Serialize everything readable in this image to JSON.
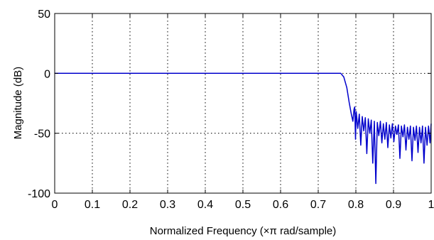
{
  "chart_data": {
    "type": "line",
    "title": "",
    "xlabel": "Normalized Frequency  (×π rad/sample)",
    "ylabel": "Magnitude (dB)",
    "xlim": [
      0,
      1
    ],
    "ylim": [
      -100,
      50
    ],
    "xticks": [
      0,
      0.1,
      0.2,
      0.3,
      0.4,
      0.5,
      0.6,
      0.7,
      0.8,
      0.9,
      1
    ],
    "xtick_labels": [
      "0",
      "0.1",
      "0.2",
      "0.3",
      "0.4",
      "0.5",
      "0.6",
      "0.7",
      "0.8",
      "0.9",
      "1"
    ],
    "yticks": [
      -100,
      -50,
      0,
      50
    ],
    "ytick_labels": [
      "-100",
      "-50",
      "0",
      "50"
    ],
    "grid": true,
    "line_color": "#0000cc",
    "series": [
      {
        "x": [
          0,
          0.76,
          0.768,
          0.776,
          0.782,
          0.788,
          0.792,
          0.795,
          0.797,
          0.799,
          0.801,
          0.805,
          0.809,
          0.813,
          0.817,
          0.821,
          0.825,
          0.829,
          0.833,
          0.837,
          0.841,
          0.845,
          0.849,
          0.853,
          0.857,
          0.861,
          0.865,
          0.869,
          0.873,
          0.877,
          0.881,
          0.885,
          0.889,
          0.893,
          0.897,
          0.901,
          0.905,
          0.909,
          0.913,
          0.917,
          0.921,
          0.925,
          0.929,
          0.933,
          0.937,
          0.941,
          0.945,
          0.949,
          0.953,
          0.957,
          0.961,
          0.965,
          0.969,
          0.973,
          0.977,
          0.981,
          0.985,
          0.989,
          0.993,
          0.997,
          1
        ],
        "y": [
          0,
          0,
          -3,
          -12,
          -24,
          -34,
          -40,
          -30,
          -28,
          -55,
          -32,
          -46,
          -34,
          -60,
          -36,
          -48,
          -37,
          -67,
          -38,
          -50,
          -39,
          -75,
          -40,
          -92,
          -41,
          -52,
          -40,
          -58,
          -42,
          -55,
          -41,
          -62,
          -43,
          -54,
          -42,
          -57,
          -44,
          -51,
          -43,
          -71,
          -44,
          -53,
          -43,
          -64,
          -45,
          -55,
          -44,
          -73,
          -45,
          -56,
          -44,
          -66,
          -45,
          -58,
          -44,
          -75,
          -45,
          -60,
          -44,
          -58,
          -42
        ]
      }
    ]
  }
}
